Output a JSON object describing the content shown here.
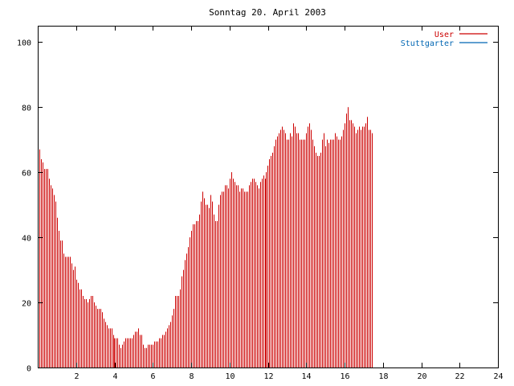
{
  "chart_data": {
    "type": "bar",
    "title": "Sonntag 20. April 2003",
    "xlabel": "",
    "ylabel": "",
    "xlim": [
      0,
      24
    ],
    "ylim": [
      0,
      105
    ],
    "grid": false,
    "legend_position": "top-right",
    "x_ticks": [
      2,
      4,
      6,
      8,
      10,
      12,
      14,
      16,
      18,
      20,
      22,
      24
    ],
    "y_ticks": [
      0,
      20,
      40,
      60,
      80,
      100
    ],
    "series": [
      {
        "name": "User",
        "color": "#cc0000",
        "x_start": 0,
        "x_step": 0.08333,
        "values": [
          68,
          67,
          64,
          63,
          61,
          61,
          61,
          58,
          56,
          55,
          53,
          51,
          46,
          42,
          39,
          39,
          35,
          34,
          34,
          34,
          34,
          32,
          30,
          31,
          27,
          26,
          24,
          24,
          22,
          21,
          21,
          20,
          21,
          22,
          22,
          20,
          19,
          18,
          18,
          18,
          17,
          15,
          14,
          13,
          12,
          12,
          12,
          10,
          9,
          9,
          9,
          7,
          6,
          7,
          8,
          9,
          9,
          9,
          9,
          9,
          10,
          11,
          11,
          12,
          10,
          10,
          7,
          6,
          6,
          7,
          7,
          7,
          7,
          8,
          8,
          8,
          9,
          9,
          10,
          10,
          11,
          12,
          13,
          14,
          16,
          18,
          22,
          22,
          22,
          24,
          28,
          30,
          33,
          35,
          37,
          40,
          42,
          44,
          44,
          45,
          45,
          47,
          51,
          54,
          52,
          50,
          50,
          49,
          53,
          51,
          47,
          45,
          45,
          50,
          53,
          54,
          54,
          56,
          56,
          55,
          58,
          60,
          58,
          57,
          56,
          56,
          54,
          55,
          55,
          54,
          54,
          54,
          56,
          57,
          58,
          58,
          57,
          56,
          55,
          57,
          58,
          59,
          58,
          60,
          62,
          64,
          65,
          66,
          68,
          70,
          71,
          72,
          73,
          74,
          73,
          72,
          70,
          70,
          72,
          71,
          75,
          74,
          72,
          72,
          70,
          70,
          70,
          70,
          72,
          74,
          75,
          73,
          70,
          68,
          66,
          65,
          65,
          66,
          70,
          72,
          68,
          70,
          69,
          70,
          70,
          70,
          72,
          71,
          70,
          70,
          71,
          73,
          75,
          78,
          80,
          76,
          76,
          75,
          74,
          72,
          73,
          74,
          73,
          74,
          74,
          75,
          77,
          73,
          73,
          72
        ]
      },
      {
        "name": "Stuttgarter",
        "color": "#0066b3",
        "x_start": 0,
        "x_step": 0.08333,
        "values": [
          0,
          0,
          0,
          0,
          0,
          0,
          0,
          0,
          0,
          0,
          0,
          0,
          0,
          0,
          0,
          0,
          0,
          0,
          0,
          0,
          0,
          0,
          0,
          0,
          0,
          0,
          0,
          0,
          0,
          0,
          0,
          0,
          0,
          0,
          0,
          0,
          0,
          0,
          0,
          0,
          0,
          0,
          0,
          0,
          0,
          0,
          0,
          0,
          0,
          0,
          0,
          0,
          0,
          0,
          0,
          0,
          0,
          0,
          0,
          0,
          0,
          0,
          0,
          0,
          0,
          0,
          0,
          0,
          0,
          0,
          0,
          0,
          0,
          0,
          0,
          0,
          0,
          0,
          0,
          0,
          0,
          0,
          0,
          0,
          0,
          0,
          0,
          0,
          0,
          0,
          0,
          0,
          0,
          0,
          0,
          0,
          0,
          0,
          0,
          0,
          0,
          0,
          0,
          0,
          0,
          0,
          0,
          0,
          0,
          0,
          0,
          0,
          0,
          0,
          0,
          0,
          0,
          0,
          0,
          0,
          0,
          0,
          0,
          0,
          0,
          0,
          0,
          0,
          0,
          0,
          0,
          0,
          0,
          0,
          0,
          0,
          0,
          0,
          0,
          0,
          0,
          0,
          0,
          0,
          0,
          0,
          0,
          0,
          0,
          0,
          0,
          0,
          0,
          0,
          0,
          0,
          0,
          0,
          0,
          0,
          0,
          0,
          0,
          0,
          0,
          0,
          0,
          0,
          0,
          0,
          0,
          0,
          0,
          0,
          0,
          0,
          0,
          0,
          0,
          0,
          0,
          0,
          0,
          0,
          0,
          0,
          0,
          0,
          0,
          0,
          0,
          0,
          0,
          0,
          0,
          0,
          0,
          0,
          0,
          0,
          0,
          0,
          0,
          0,
          0,
          0,
          0,
          0,
          0
        ]
      }
    ]
  }
}
